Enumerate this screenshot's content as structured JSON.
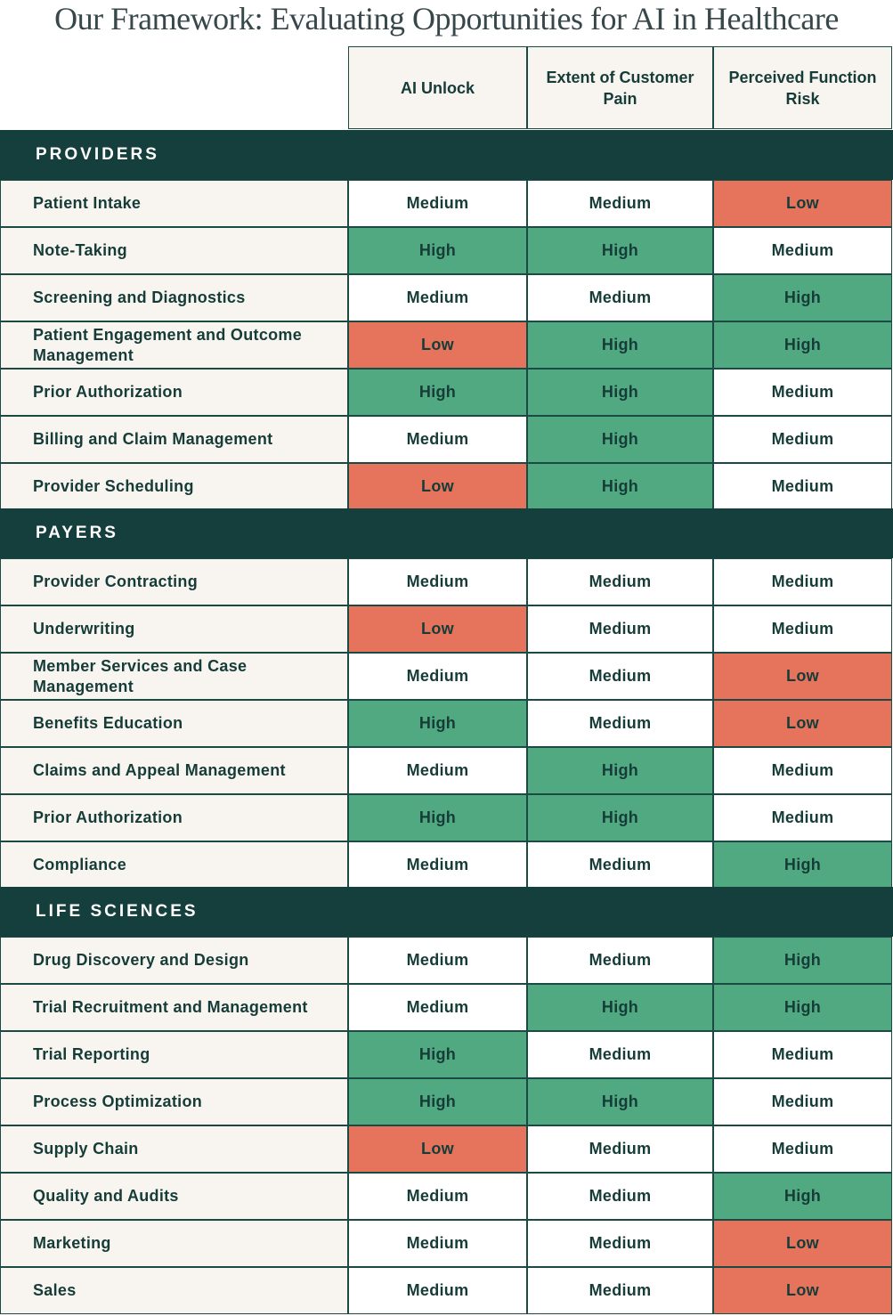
{
  "title": "Our Framework: Evaluating Opportunities for AI in Healthcare",
  "columns": [
    "AI Unlock",
    "Extent of Customer Pain",
    "Perceived Function Risk"
  ],
  "colors": {
    "High": "#51a982",
    "Medium": "#ffffff",
    "Low": "#e6735c",
    "band": "#143f3c",
    "label_bg": "#f8f5f1"
  },
  "sections": [
    {
      "name": "PROVIDERS",
      "rows": [
        {
          "label": "Patient Intake",
          "values": [
            "Medium",
            "Medium",
            "Low"
          ]
        },
        {
          "label": "Note-Taking",
          "values": [
            "High",
            "High",
            "Medium"
          ]
        },
        {
          "label": "Screening and Diagnostics",
          "values": [
            "Medium",
            "Medium",
            "High"
          ]
        },
        {
          "label": "Patient Engagement and Outcome Management",
          "values": [
            "Low",
            "High",
            "High"
          ]
        },
        {
          "label": "Prior Authorization",
          "values": [
            "High",
            "High",
            "Medium"
          ]
        },
        {
          "label": "Billing and Claim Management",
          "values": [
            "Medium",
            "High",
            "Medium"
          ]
        },
        {
          "label": "Provider Scheduling",
          "values": [
            "Low",
            "High",
            "Medium"
          ]
        }
      ]
    },
    {
      "name": "PAYERS",
      "rows": [
        {
          "label": "Provider Contracting",
          "values": [
            "Medium",
            "Medium",
            "Medium"
          ]
        },
        {
          "label": "Underwriting",
          "values": [
            "Low",
            "Medium",
            "Medium"
          ]
        },
        {
          "label": "Member Services and Case Management",
          "values": [
            "Medium",
            "Medium",
            "Low"
          ]
        },
        {
          "label": "Benefits Education",
          "values": [
            "High",
            "Medium",
            "Low"
          ]
        },
        {
          "label": "Claims and Appeal Management",
          "values": [
            "Medium",
            "High",
            "Medium"
          ]
        },
        {
          "label": "Prior Authorization",
          "values": [
            "High",
            "High",
            "Medium"
          ]
        },
        {
          "label": "Compliance",
          "values": [
            "Medium",
            "Medium",
            "High"
          ]
        }
      ]
    },
    {
      "name": "LIFE SCIENCES",
      "rows": [
        {
          "label": "Drug Discovery and Design",
          "values": [
            "Medium",
            "Medium",
            "High"
          ]
        },
        {
          "label": "Trial Recruitment and Management",
          "values": [
            "Medium",
            "High",
            "High"
          ]
        },
        {
          "label": "Trial Reporting",
          "values": [
            "High",
            "Medium",
            "Medium"
          ]
        },
        {
          "label": "Process Optimization",
          "values": [
            "High",
            "High",
            "Medium"
          ]
        },
        {
          "label": "Supply Chain",
          "values": [
            "Low",
            "Medium",
            "Medium"
          ]
        },
        {
          "label": "Quality and Audits",
          "values": [
            "Medium",
            "Medium",
            "High"
          ]
        },
        {
          "label": "Marketing",
          "values": [
            "Medium",
            "Medium",
            "Low"
          ]
        },
        {
          "label": "Sales",
          "values": [
            "Medium",
            "Medium",
            "Low"
          ]
        }
      ]
    }
  ]
}
